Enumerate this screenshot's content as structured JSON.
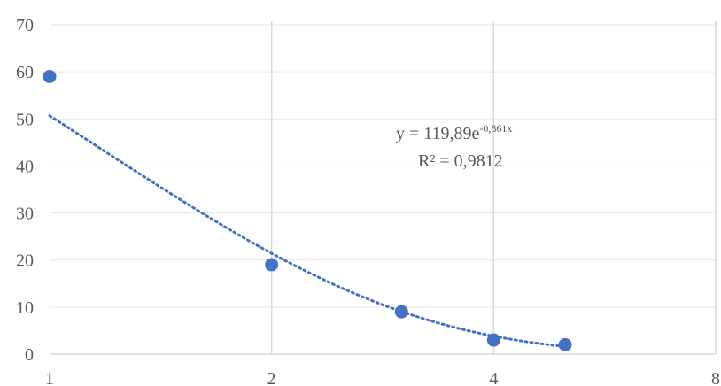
{
  "chart_data": {
    "type": "scatter",
    "title": "",
    "xlabel": "",
    "ylabel": "",
    "x_scale": "log",
    "xlim": [
      1,
      8
    ],
    "ylim": [
      0,
      70
    ],
    "x_ticks": [
      1,
      2,
      4,
      8
    ],
    "x_tick_labels": [
      "1",
      "2",
      "4",
      "8"
    ],
    "y_ticks": [
      0,
      10,
      20,
      30,
      40,
      50,
      60,
      70
    ],
    "y_tick_labels": [
      "0",
      "10",
      "20",
      "30",
      "40",
      "50",
      "60",
      "70"
    ],
    "grid": {
      "vertical": true,
      "horizontal": true
    },
    "series": [
      {
        "x": [
          1,
          2,
          3,
          4,
          5
        ],
        "y": [
          59,
          19,
          9,
          3,
          2
        ],
        "color": "#4472C4"
      }
    ],
    "trendline": {
      "kind": "exponential",
      "a": 119.89,
      "b": -0.861,
      "style": "dotted",
      "color": "#4472C4"
    },
    "annotations": {
      "equation_prefix": "y = 119,89e",
      "equation_exponent": "-0,861x",
      "r_squared": "R² = 0,9812"
    }
  }
}
